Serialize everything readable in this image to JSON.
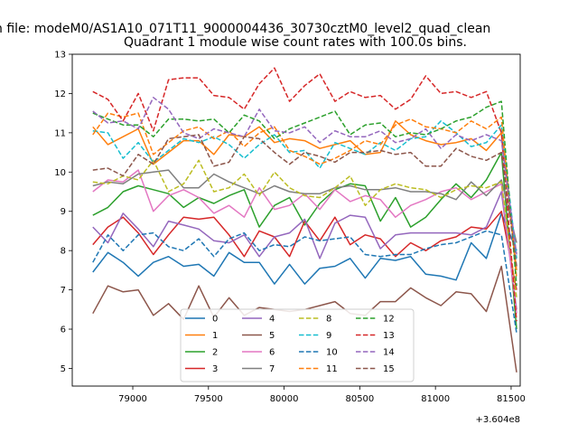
{
  "chart_data": {
    "type": "line",
    "suptitle": "n file: modeM0/AS1A10_071T11_9000004436_30730cztM0_level2_quad_clean",
    "title": "Quadrant 1 module wise count rates with 100.0s bins.",
    "xlabel": "",
    "ylabel": "",
    "x_offset_label": "+3.604e8",
    "xlim": [
      78600,
      81560
    ],
    "ylim": [
      4.55,
      13.0
    ],
    "xticks": [
      79000,
      79500,
      80000,
      80500,
      81000,
      81500
    ],
    "xtick_labels": [
      "79000",
      "79500",
      "80000",
      "80500",
      "81000",
      "81500"
    ],
    "yticks": [
      5,
      6,
      7,
      8,
      9,
      10,
      11,
      12,
      13
    ],
    "ytick_labels": [
      "5",
      "6",
      "7",
      "8",
      "9",
      "10",
      "11",
      "12",
      "13"
    ],
    "x": [
      78736,
      78836,
      78936,
      79036,
      79136,
      79236,
      79336,
      79436,
      79536,
      79636,
      79736,
      79836,
      79936,
      80036,
      80136,
      80236,
      80336,
      80436,
      80536,
      80636,
      80736,
      80836,
      80936,
      81036,
      81136,
      81236,
      81336,
      81436
    ],
    "legend_position": "lower center",
    "series": [
      {
        "name": "0",
        "color": "#1f77b4",
        "dashed": false,
        "values": [
          7.45,
          7.95,
          7.7,
          7.35,
          7.7,
          7.85,
          7.6,
          7.65,
          7.35,
          7.95,
          7.7,
          7.7,
          7.15,
          7.65,
          7.15,
          7.55,
          7.6,
          7.8,
          7.3,
          7.8,
          7.75,
          7.85,
          7.4,
          7.35,
          7.25,
          8.2,
          7.8,
          8.95
        ]
      },
      {
        "name": "1",
        "color": "#ff7f0e",
        "dashed": false,
        "values": [
          11.15,
          10.7,
          10.9,
          11.1,
          10.2,
          10.5,
          10.8,
          10.8,
          10.45,
          10.95,
          10.9,
          11.15,
          10.75,
          10.85,
          10.8,
          10.6,
          10.7,
          10.8,
          10.45,
          10.5,
          11.3,
          10.95,
          10.8,
          10.7,
          10.75,
          10.85,
          10.55,
          11.0
        ]
      },
      {
        "name": "2",
        "color": "#2ca02c",
        "dashed": false,
        "values": [
          8.9,
          9.1,
          9.5,
          9.65,
          9.55,
          9.45,
          9.1,
          9.35,
          9.2,
          9.4,
          9.55,
          8.6,
          9.15,
          9.35,
          8.65,
          9.2,
          9.55,
          9.7,
          9.65,
          8.75,
          9.35,
          8.6,
          8.85,
          9.3,
          9.7,
          9.35,
          9.8,
          10.5
        ]
      },
      {
        "name": "3",
        "color": "#d62728",
        "dashed": false,
        "values": [
          8.15,
          8.6,
          8.85,
          8.45,
          7.9,
          8.4,
          8.85,
          8.8,
          8.85,
          8.4,
          7.85,
          8.5,
          8.35,
          7.85,
          8.75,
          8.25,
          8.85,
          8.15,
          8.4,
          8.3,
          7.85,
          8.2,
          8.0,
          8.25,
          8.35,
          8.6,
          8.55,
          9.0
        ]
      },
      {
        "name": "4",
        "color": "#9467bd",
        "dashed": false,
        "values": [
          8.6,
          8.2,
          8.95,
          8.55,
          8.1,
          8.75,
          8.65,
          8.55,
          8.25,
          8.2,
          8.4,
          7.85,
          8.35,
          8.45,
          8.8,
          7.8,
          8.7,
          8.9,
          8.85,
          8.05,
          8.4,
          8.45,
          8.45,
          8.45,
          8.45,
          8.4,
          8.6,
          9.5
        ]
      },
      {
        "name": "5",
        "color": "#8c564b",
        "dashed": false,
        "values": [
          6.4,
          7.1,
          6.95,
          7.0,
          6.35,
          6.65,
          6.25,
          7.1,
          6.3,
          6.8,
          6.35,
          6.55,
          6.5,
          6.45,
          6.5,
          6.6,
          6.7,
          6.4,
          6.35,
          6.7,
          6.7,
          7.05,
          6.8,
          6.6,
          6.95,
          6.9,
          6.45,
          7.6
        ]
      },
      {
        "name": "6",
        "color": "#e377c2",
        "dashed": false,
        "values": [
          9.5,
          9.8,
          9.75,
          10.05,
          9.0,
          9.4,
          9.55,
          9.35,
          8.95,
          9.15,
          8.85,
          9.6,
          9.05,
          9.15,
          9.45,
          9.05,
          9.55,
          9.25,
          9.4,
          9.3,
          8.85,
          9.15,
          9.3,
          9.5,
          9.6,
          9.3,
          9.5,
          9.7
        ]
      },
      {
        "name": "7",
        "color": "#7f7f7f",
        "dashed": false,
        "values": [
          9.65,
          9.75,
          9.7,
          9.95,
          10.0,
          10.05,
          9.6,
          9.6,
          9.95,
          9.75,
          9.6,
          9.45,
          9.65,
          9.5,
          9.45,
          9.45,
          9.6,
          9.65,
          9.55,
          9.55,
          9.6,
          9.5,
          9.5,
          9.45,
          9.3,
          9.75,
          9.4,
          9.8
        ]
      },
      {
        "name": "8",
        "color": "#bcbd22",
        "dashed": true,
        "values": [
          9.75,
          9.7,
          9.9,
          9.8,
          10.3,
          9.5,
          9.7,
          10.3,
          9.5,
          9.6,
          9.95,
          9.4,
          10.0,
          9.6,
          9.4,
          9.35,
          9.6,
          9.9,
          9.15,
          9.55,
          9.7,
          9.6,
          9.55,
          9.35,
          9.55,
          9.65,
          9.6,
          9.75
        ]
      },
      {
        "name": "9",
        "color": "#17becf",
        "dashed": true,
        "values": [
          11.05,
          11.0,
          10.35,
          10.75,
          10.25,
          10.55,
          10.85,
          10.75,
          10.9,
          10.7,
          10.35,
          10.7,
          10.95,
          10.5,
          10.55,
          10.1,
          10.75,
          10.6,
          10.45,
          10.75,
          10.55,
          10.85,
          10.9,
          11.3,
          11.0,
          10.65,
          10.75,
          11.2
        ]
      },
      {
        "name": "10",
        "color": "#1f77b4",
        "dashed": true,
        "values": [
          7.7,
          8.4,
          8.0,
          8.4,
          8.45,
          8.1,
          8.0,
          8.3,
          7.85,
          8.3,
          8.45,
          8.0,
          8.15,
          8.1,
          8.35,
          8.25,
          8.3,
          8.35,
          7.9,
          7.85,
          7.9,
          7.9,
          8.05,
          8.15,
          8.2,
          8.35,
          8.5,
          8.4
        ]
      },
      {
        "name": "11",
        "color": "#ff7f0e",
        "dashed": true,
        "values": [
          10.95,
          11.5,
          11.4,
          11.5,
          10.45,
          10.75,
          11.05,
          11.15,
          10.85,
          11.05,
          10.65,
          11.0,
          11.15,
          10.55,
          10.4,
          10.2,
          10.35,
          10.55,
          10.8,
          10.7,
          11.2,
          11.35,
          11.15,
          11.1,
          11.0,
          11.3,
          11.1,
          11.4
        ]
      },
      {
        "name": "12",
        "color": "#2ca02c",
        "dashed": true,
        "values": [
          11.5,
          11.35,
          11.2,
          11.2,
          10.9,
          11.35,
          11.35,
          11.3,
          11.35,
          11.0,
          11.45,
          11.3,
          10.85,
          11.1,
          11.25,
          11.4,
          11.55,
          10.95,
          11.2,
          11.25,
          10.9,
          11.0,
          10.95,
          11.1,
          11.3,
          11.4,
          11.65,
          11.8
        ]
      },
      {
        "name": "13",
        "color": "#d62728",
        "dashed": true,
        "values": [
          12.05,
          11.85,
          11.3,
          12.0,
          11.05,
          12.35,
          12.4,
          12.4,
          11.95,
          11.9,
          11.6,
          12.25,
          12.65,
          11.8,
          12.2,
          12.5,
          11.8,
          12.05,
          11.9,
          11.95,
          11.6,
          11.85,
          12.45,
          12.0,
          12.05,
          11.9,
          12.05,
          11.0
        ]
      },
      {
        "name": "14",
        "color": "#9467bd",
        "dashed": true,
        "values": [
          11.55,
          11.25,
          11.3,
          11.1,
          11.9,
          11.6,
          11.0,
          10.85,
          11.1,
          11.0,
          10.9,
          11.6,
          11.05,
          11.0,
          11.15,
          10.75,
          11.05,
          10.9,
          10.9,
          11.05,
          10.75,
          10.85,
          11.1,
          10.6,
          10.95,
          10.8,
          10.95,
          10.8
        ]
      },
      {
        "name": "15",
        "color": "#8c564b",
        "dashed": true,
        "values": [
          10.05,
          10.1,
          9.9,
          10.45,
          10.2,
          10.85,
          10.9,
          10.95,
          10.15,
          10.25,
          10.9,
          10.85,
          10.5,
          10.2,
          10.5,
          10.4,
          10.25,
          10.5,
          10.5,
          10.55,
          10.45,
          10.5,
          10.15,
          10.15,
          10.6,
          10.4,
          10.3,
          10.5
        ]
      }
    ],
    "end_points": [
      8.0,
      7.5,
      6.0,
      7.0,
      6.5,
      4.9,
      6.4,
      8.2,
      6.8,
      7.8,
      5.9,
      7.3,
      7.1,
      6.2,
      7.9,
      7.6
    ]
  }
}
